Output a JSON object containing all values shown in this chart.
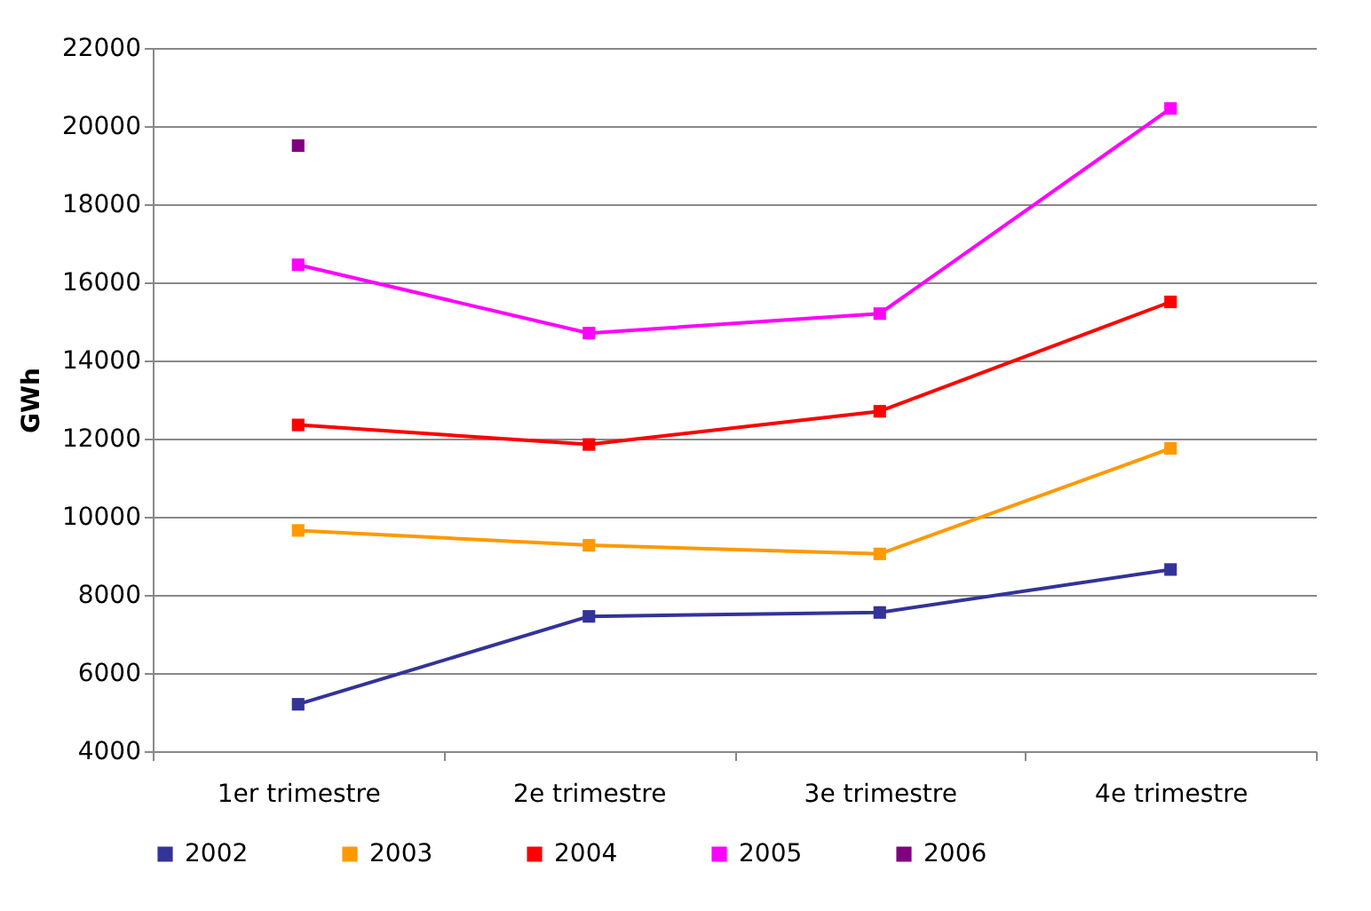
{
  "chart_data": {
    "type": "line",
    "ylabel": "GWh",
    "categories": [
      "1er trimestre",
      "2e trimestre",
      "3e trimestre",
      "4e trimestre"
    ],
    "series": [
      {
        "name": "2002",
        "color": "#333399",
        "values": [
          5200,
          7450,
          7550,
          8650
        ]
      },
      {
        "name": "2003",
        "color": "#ff9900",
        "values": [
          9650,
          9270,
          9050,
          11750
        ]
      },
      {
        "name": "2004",
        "color": "#ff0000",
        "values": [
          12350,
          11850,
          12700,
          15500
        ]
      },
      {
        "name": "2005",
        "color": "#ff00ff",
        "values": [
          16450,
          14700,
          15200,
          20450
        ]
      },
      {
        "name": "2006",
        "color": "#800080",
        "values": [
          19500,
          null,
          null,
          null
        ]
      }
    ],
    "ylim": [
      4000,
      22000
    ],
    "yticks": [
      4000,
      6000,
      8000,
      10000,
      12000,
      14000,
      16000,
      18000,
      20000,
      22000
    ],
    "grid": "y",
    "legend": "bottom",
    "marker": "square",
    "line_style": "solid"
  }
}
